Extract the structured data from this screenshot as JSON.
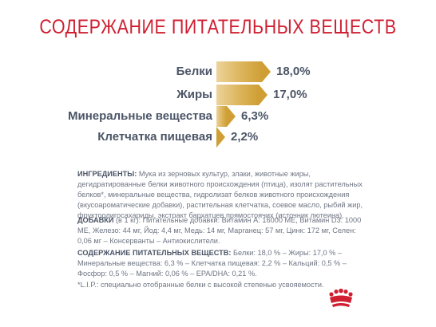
{
  "title": "СОДЕРЖАНИЕ ПИТАТЕЛЬНЫХ ВЕЩЕСТВ",
  "nutrients": [
    {
      "label": "Белки",
      "value": "18,0%",
      "percent": 18.0
    },
    {
      "label": "Жиры",
      "value": "17,0%",
      "percent": 17.0
    },
    {
      "label": "Минеральные вещества",
      "value": "6,3%",
      "percent": 6.3
    },
    {
      "label": "Клетчатка пищевая",
      "value": "2,2%",
      "percent": 2.2
    }
  ],
  "ingredients": {
    "heading": "ИНГРЕДИЕНТЫ:",
    "text": " Мука из зерновых культур, злаки, животные жиры, дегидратированные белки животного происхождения (птица), изолят растительных белков*, минеральные вещества, гидролизат белков животного происхождения (вкусоароматические добавки), растительная клетчатка, соевое масло, рыбий жир, фруктоолигосахариды, экстракт бархатцев прямостоячих (источник лютеина)."
  },
  "additives": {
    "heading": "ДОБАВКИ",
    "text": " (в 1 кг): Питательные добавки: Витамин А: 16000 МЕ, Витамин D3: 1000 МЕ, Железо: 44 мг, Йод: 4,4 мг, Медь: 14 мг, Марганец: 57 мг, Цинк: 172 мг, Селен: 0,06 мг – Консерванты – Антиокислители."
  },
  "nutrition": {
    "heading": "СОДЕРЖАНИЕ ПИТАТЕЛЬНЫХ ВЕЩЕСТВ:",
    "text": " Белки: 18,0 % – Жиры: 17,0 % – Минеральные вещества: 6,3 % – Клетчатка пищевая: 2,2 % – Кальций: 0,5 % – Фосфор: 0,5 % – Магний: 0,06 % – EPA/DHA: 0,21 %."
  },
  "footnote": "*L.I.P.: специально отобранные белки с высокой степенью усвояемости.",
  "colors": {
    "title": "#d01f31",
    "bar_gold": "#cf9f35",
    "text": "#4b5566",
    "logo": "#d01f31"
  },
  "logo_icon": "royal-canin-crown-icon"
}
